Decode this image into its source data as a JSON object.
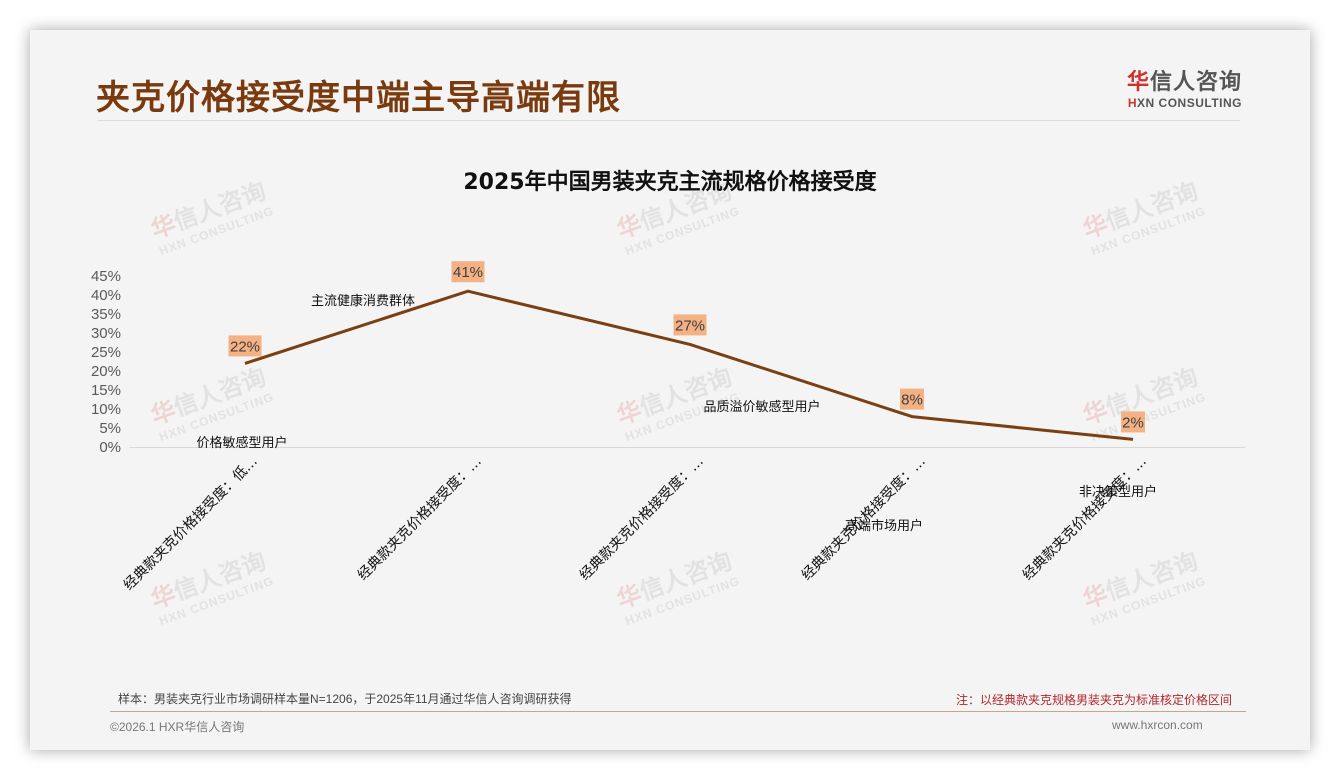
{
  "page": {
    "title": "夹克价格接受度中端主导高端有限",
    "logo": {
      "cn_accent": "华",
      "cn_rest": "信人咨询",
      "en_accent": "H",
      "en_rest": "XN CONSULTING"
    },
    "watermark": {
      "cn_accent": "华",
      "cn_rest": "信人咨询",
      "en": "HXN CONSULTING"
    },
    "footer": {
      "sample_note": "样本：男装夹克行业市场调研样本量N=1206，于2025年11月通过华信人咨询调研获得",
      "right_note": "注：以经典款夹克规格男装夹克为标准核定价格区间",
      "copyright": "©2026.1 HXR华信人咨询",
      "website": "www.hxrcon.com"
    }
  },
  "chart_data": {
    "type": "line",
    "title": "2025年中国男装夹克主流规格价格接受度",
    "xlabel": "",
    "ylabel": "",
    "ylim": [
      0,
      45
    ],
    "yticks": [
      "0%",
      "5%",
      "10%",
      "15%",
      "20%",
      "25%",
      "30%",
      "35%",
      "40%",
      "45%"
    ],
    "grid": false,
    "legend": null,
    "categories": [
      "经典款夹克价格接受度：低…",
      "经典款夹克价格接受度：…",
      "经典款夹克价格接受度：…",
      "经典款夹克价格接受度：…",
      "经典款夹克价格接受度：…"
    ],
    "series": [
      {
        "name": "价格接受度",
        "color": "#7b3f14",
        "values": [
          22,
          41,
          27,
          8,
          2
        ]
      }
    ],
    "data_labels": [
      "22%",
      "41%",
      "27%",
      "8%",
      "2%"
    ],
    "data_label_bg": "#f4b183",
    "annotations": [
      {
        "text": "价格敏感型用户",
        "near_category": 0
      },
      {
        "text": "主流健康消费群体",
        "near_category": 1
      },
      {
        "text": "品质溢价敏感型用户",
        "near_category": 2
      },
      {
        "text": "高端市场用户",
        "near_category": 3
      },
      {
        "text": "非决策型用户",
        "near_category": 4
      }
    ]
  }
}
